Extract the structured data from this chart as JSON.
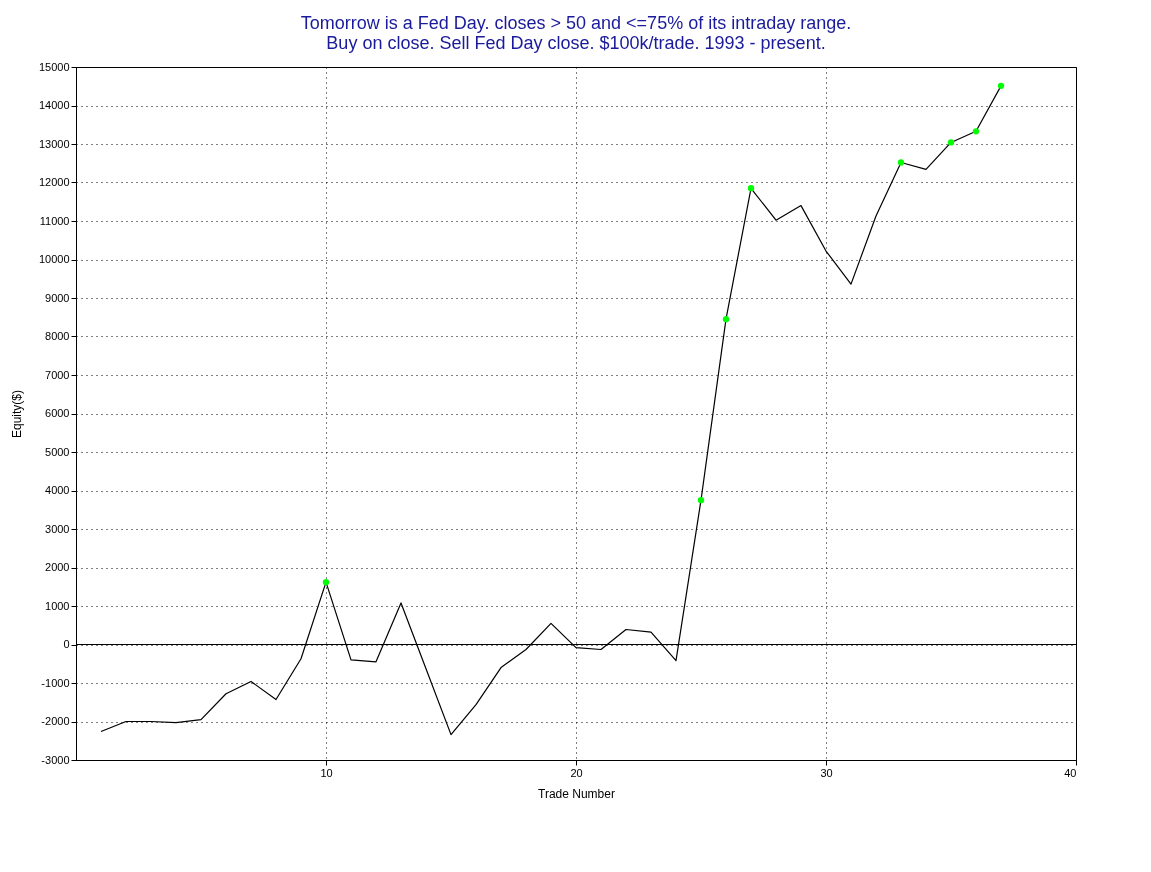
{
  "chart_data": {
    "type": "line",
    "title": [
      "Tomorrow is a Fed Day. closes > 50 and <=75% of its intraday range.",
      "Buy on close. Sell Fed Day close. $100k/trade. 1993 - present."
    ],
    "xlabel": "Trade Number",
    "ylabel": "Equity($)",
    "xlim": [
      0,
      40
    ],
    "xticks": [
      10,
      20,
      30,
      40
    ],
    "ylim": [
      -3000,
      15000
    ],
    "yticks": [
      -3000,
      -2000,
      -1000,
      0,
      1000,
      2000,
      3000,
      4000,
      5000,
      6000,
      7000,
      8000,
      9000,
      10000,
      11000,
      12000,
      13000,
      14000,
      15000
    ],
    "grid": true,
    "marker": "none",
    "line_style": "solid",
    "ref_lines": [
      {
        "axis": "y",
        "value": 0,
        "color": "#000000",
        "line_style": "solid"
      }
    ],
    "series": [
      {
        "color": "#000000",
        "x": [
          1,
          2,
          3,
          4,
          5,
          6,
          7,
          8,
          9,
          10,
          11,
          12,
          13,
          14,
          15,
          16,
          17,
          18,
          19,
          20,
          21,
          22,
          23,
          24,
          25,
          26,
          27,
          28,
          29,
          30,
          31,
          32,
          33,
          34,
          35,
          36,
          37
        ],
        "values": [
          -2260,
          -2000,
          -2000,
          -2030,
          -1950,
          -1280,
          -960,
          -1430,
          -370,
          1620,
          -400,
          -450,
          1080,
          -630,
          -2340,
          -1560,
          -600,
          -130,
          550,
          -80,
          -130,
          390,
          320,
          -420,
          3750,
          8450,
          11850,
          11020,
          11400,
          10220,
          9360,
          11130,
          12520,
          12340,
          13040,
          13330,
          14510
        ]
      },
      {
        "type": "scatter",
        "marker": "circle",
        "color": "#00ff00",
        "x": [
          10,
          25,
          26,
          27,
          33,
          35,
          36,
          37
        ],
        "values": [
          1620,
          3750,
          8450,
          11850,
          12520,
          13040,
          13330,
          14510
        ]
      }
    ]
  }
}
